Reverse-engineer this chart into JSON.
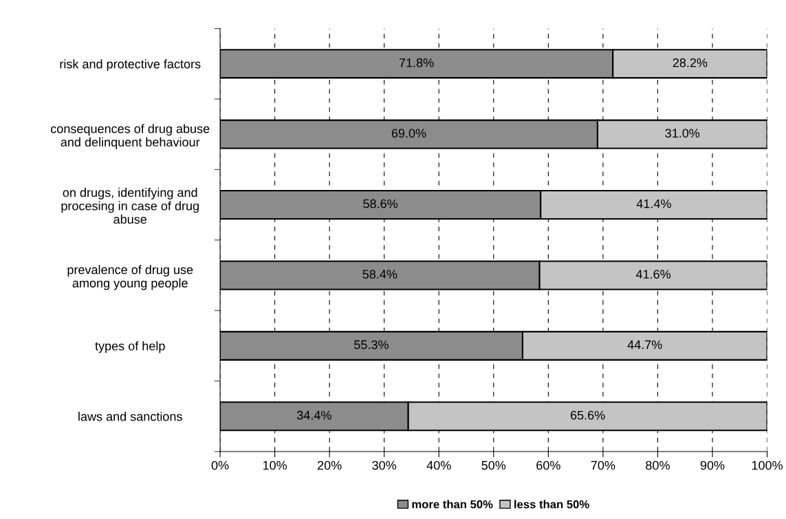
{
  "chart_data": {
    "type": "bar",
    "orientation": "horizontal",
    "stacked": true,
    "categories": [
      "risk and protective factors",
      "consequences of drug abuse\nand delinquent behaviour",
      "on drugs, identifying and\nprocesing in case of drug\nabuse",
      "prevalence of drug use\namong young people",
      "types of help",
      "laws and sanctions"
    ],
    "series": [
      {
        "name": "more than 50%",
        "color": "#8c8c8c",
        "values": [
          71.8,
          69.0,
          58.6,
          58.4,
          55.3,
          34.4
        ],
        "value_labels": [
          "71.8%",
          "69.0%",
          "58.6%",
          "58.4%",
          "55.3%",
          "34.4%"
        ]
      },
      {
        "name": "less than 50%",
        "color": "#c4c4c4",
        "values": [
          28.2,
          31.0,
          41.4,
          41.6,
          44.7,
          65.6
        ],
        "value_labels": [
          "28.2%",
          "31.0%",
          "41.4%",
          "41.6%",
          "44.7%",
          "65.6%"
        ]
      }
    ],
    "xlim": [
      0,
      100
    ],
    "xticks": [
      {
        "value": 0,
        "label": "0%"
      },
      {
        "value": 10,
        "label": "10%"
      },
      {
        "value": 20,
        "label": "20%"
      },
      {
        "value": 30,
        "label": "30%"
      },
      {
        "value": 40,
        "label": "40%"
      },
      {
        "value": 50,
        "label": "50%"
      },
      {
        "value": 60,
        "label": "60%"
      },
      {
        "value": 70,
        "label": "70%"
      },
      {
        "value": 80,
        "label": "80%"
      },
      {
        "value": 90,
        "label": "90%"
      },
      {
        "value": 100,
        "label": "100%"
      }
    ],
    "grid": "x",
    "line_style": "dashed",
    "legend": "bottom"
  }
}
